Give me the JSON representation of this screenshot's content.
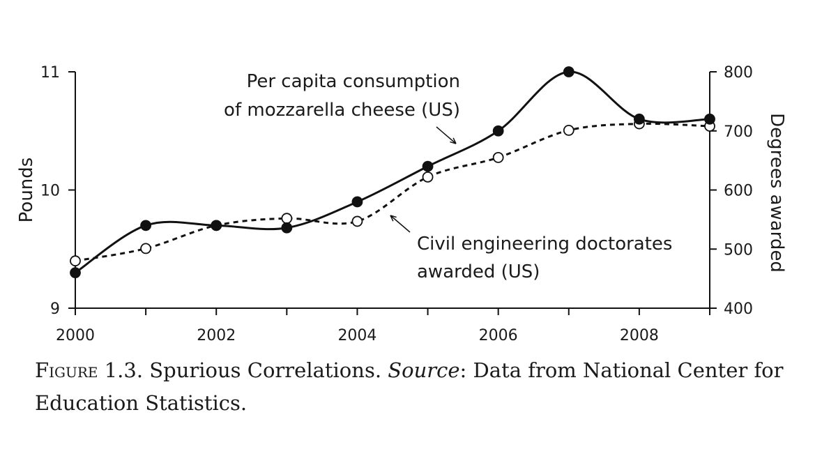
{
  "chart_data": {
    "type": "line",
    "x": [
      2000,
      2001,
      2002,
      2003,
      2004,
      2005,
      2006,
      2007,
      2008,
      2009
    ],
    "xticks": [
      "2000",
      "2002",
      "2004",
      "2006",
      "2008"
    ],
    "xlim": [
      2000,
      2009
    ],
    "ylabel": "Pounds",
    "ylim": [
      9,
      11
    ],
    "yticks": [
      "9",
      "10",
      "11"
    ],
    "y2label": "Degrees awarded",
    "y2lim": [
      400,
      800
    ],
    "y2ticks": [
      "400",
      "500",
      "600",
      "700",
      "800"
    ],
    "series": [
      {
        "name": "Per capita consumption of mozzarella cheese (US)",
        "axis": "left",
        "style": "solid",
        "marker": "filled",
        "values": [
          9.3,
          9.7,
          9.7,
          9.68,
          9.9,
          10.2,
          10.5,
          11.0,
          10.6,
          10.6
        ]
      },
      {
        "name": "Civil engineering doctorates awarded (US)",
        "axis": "right",
        "style": "dashed",
        "marker": "open",
        "values": [
          480,
          501,
          540,
          552,
          547,
          622,
          655,
          701,
          712,
          708
        ]
      }
    ],
    "annotations": [
      {
        "series": 0,
        "lines": [
          "Per capita consumption",
          "of mozzarella cheese (US)"
        ]
      },
      {
        "series": 1,
        "lines": [
          "Civil engineering doctorates",
          "awarded (US)"
        ]
      }
    ],
    "grid": false,
    "line_color": "#111111"
  },
  "caption": {
    "label": "Figure 1.3.",
    "title": "Spurious Correlations.",
    "source_label": "Source",
    "source_text": ": Data from National Center for Education Statistics."
  }
}
